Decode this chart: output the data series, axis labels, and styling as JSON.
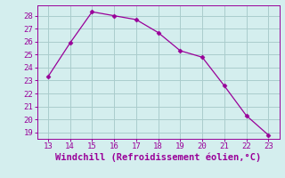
{
  "x": [
    13,
    14,
    15,
    16,
    17,
    18,
    19,
    20,
    21,
    22,
    23
  ],
  "y": [
    23.3,
    25.9,
    28.3,
    28.0,
    27.7,
    26.7,
    25.3,
    24.8,
    22.6,
    20.3,
    18.8
  ],
  "line_color": "#990099",
  "marker": "D",
  "marker_size": 2.5,
  "bg_color": "#d4eeee",
  "grid_color": "#aacccc",
  "xlabel": "Windchill (Refroidissement éolien,°C)",
  "xlabel_color": "#990099",
  "tick_color": "#990099",
  "spine_color": "#990099",
  "xlim": [
    12.5,
    23.5
  ],
  "ylim": [
    18.5,
    28.8
  ],
  "xticks": [
    13,
    14,
    15,
    16,
    17,
    18,
    19,
    20,
    21,
    22,
    23
  ],
  "yticks": [
    19,
    20,
    21,
    22,
    23,
    24,
    25,
    26,
    27,
    28
  ],
  "tick_fontsize": 6.5,
  "xlabel_fontsize": 7.5
}
